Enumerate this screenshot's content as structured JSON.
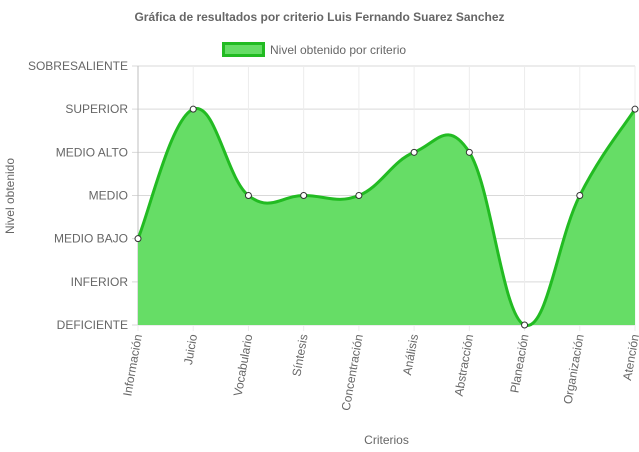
{
  "chart_data": {
    "type": "area",
    "title": "Gráfica de resultados por criterio Luis Fernando Suarez Sanchez",
    "xlabel": "Criterios",
    "ylabel": "Nivel obtenido",
    "legend_position": "top",
    "categories": [
      "Información",
      "Juicio",
      "Vocabulario",
      "Síntesis",
      "Concentración",
      "Análisis",
      "Abstracción",
      "Planeación",
      "Organización",
      "Atención"
    ],
    "y_levels": [
      "DEFICIENTE",
      "INFERIOR",
      "MEDIO BAJO",
      "MEDIO",
      "MEDIO ALTO",
      "SUPERIOR",
      "SOBRESALIENTE"
    ],
    "ylim": [
      0,
      6
    ],
    "series": [
      {
        "name": "Nivel obtenido por criterio",
        "values": [
          2,
          5,
          3,
          3,
          3,
          4,
          4,
          0,
          3,
          5
        ],
        "fill_color": "#66dd66",
        "line_color": "#22bb22"
      }
    ],
    "grid": true
  }
}
